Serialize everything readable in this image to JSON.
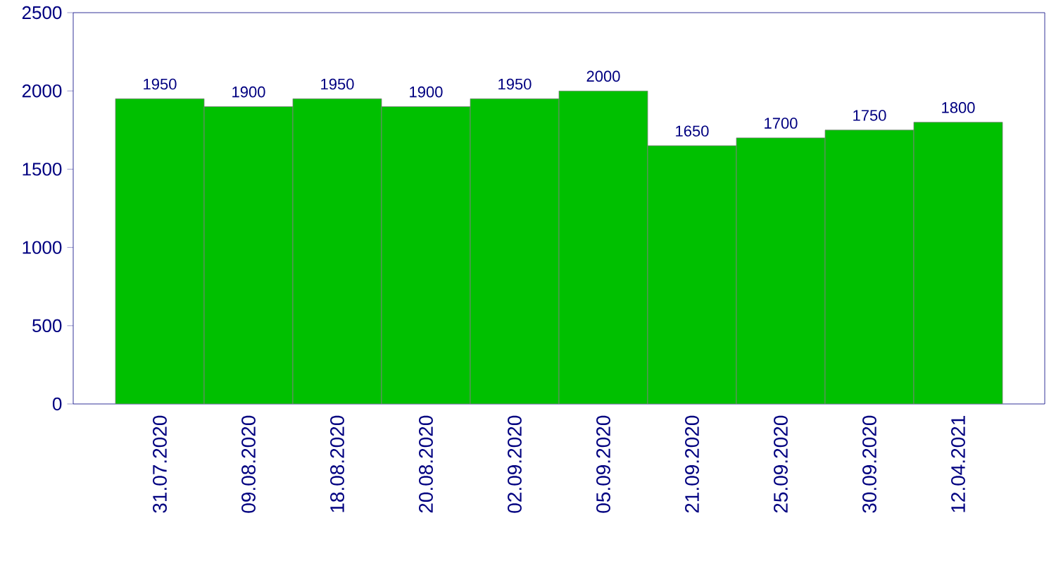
{
  "chart_data": {
    "type": "bar",
    "categories": [
      "31.07.2020",
      "09.08.2020",
      "18.08.2020",
      "20.08.2020",
      "02.09.2020",
      "05.09.2020",
      "21.09.2020",
      "25.09.2020",
      "30.09.2020",
      "12.04.2021"
    ],
    "values": [
      1950,
      1900,
      1950,
      1900,
      1950,
      2000,
      1650,
      1700,
      1750,
      1800
    ],
    "color": "#00c000",
    "ylim": [
      0,
      2500
    ],
    "yticks": [
      0,
      500,
      1000,
      1500,
      2000,
      2500
    ],
    "data_labels": true
  }
}
